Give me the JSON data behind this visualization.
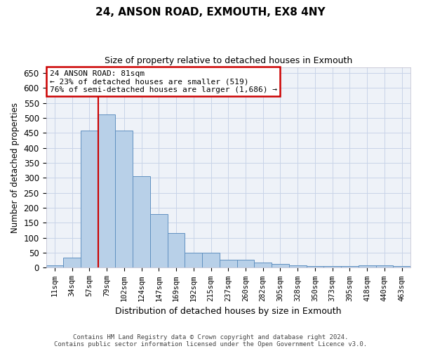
{
  "title1": "24, ANSON ROAD, EXMOUTH, EX8 4NY",
  "title2": "Size of property relative to detached houses in Exmouth",
  "xlabel": "Distribution of detached houses by size in Exmouth",
  "ylabel": "Number of detached properties",
  "footer1": "Contains HM Land Registry data © Crown copyright and database right 2024.",
  "footer2": "Contains public sector information licensed under the Open Government Licence v3.0.",
  "categories": [
    "11sqm",
    "34sqm",
    "57sqm",
    "79sqm",
    "102sqm",
    "124sqm",
    "147sqm",
    "169sqm",
    "192sqm",
    "215sqm",
    "237sqm",
    "260sqm",
    "282sqm",
    "305sqm",
    "328sqm",
    "350sqm",
    "373sqm",
    "395sqm",
    "418sqm",
    "440sqm",
    "463sqm"
  ],
  "values": [
    7,
    35,
    457,
    512,
    457,
    305,
    180,
    117,
    50,
    50,
    27,
    27,
    18,
    13,
    9,
    5,
    5,
    5,
    8,
    7,
    5
  ],
  "bar_color": "#b8d0e8",
  "bar_edge_color": "#6090c0",
  "annotation_text1": "24 ANSON ROAD: 81sqm",
  "annotation_text2": "← 23% of detached houses are smaller (519)",
  "annotation_text3": "76% of semi-detached houses are larger (1,686) →",
  "annotation_box_color": "#ffffff",
  "annotation_box_edge": "#cc0000",
  "vline_color": "#cc0000",
  "vline_x": 3.0,
  "ylim": [
    0,
    670
  ],
  "yticks": [
    0,
    50,
    100,
    150,
    200,
    250,
    300,
    350,
    400,
    450,
    500,
    550,
    600,
    650
  ],
  "grid_color": "#c8d4e8",
  "background_color": "#eef2f8"
}
